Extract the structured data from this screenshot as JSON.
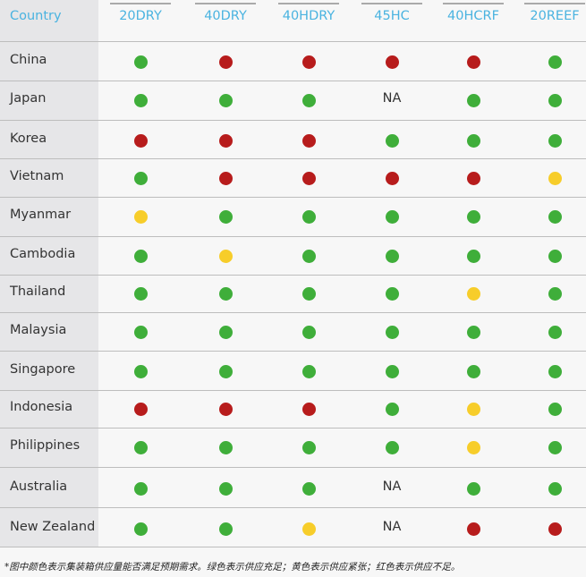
{
  "chart_data": {
    "type": "table",
    "header": "Country",
    "columns": [
      "20DRY",
      "40DRY",
      "40HDRY",
      "45HC",
      "40HCRF",
      "20REEF"
    ],
    "rows": [
      {
        "country": "China",
        "values": [
          "green",
          "red",
          "red",
          "red",
          "red",
          "green"
        ]
      },
      {
        "country": "Japan",
        "values": [
          "green",
          "green",
          "green",
          "NA",
          "green",
          "green"
        ]
      },
      {
        "country": "Korea",
        "values": [
          "red",
          "red",
          "red",
          "green",
          "green",
          "green"
        ]
      },
      {
        "country": "Vietnam",
        "values": [
          "green",
          "red",
          "red",
          "red",
          "red",
          "yellow"
        ]
      },
      {
        "country": "Myanmar",
        "values": [
          "yellow",
          "green",
          "green",
          "green",
          "green",
          "green"
        ]
      },
      {
        "country": "Cambodia",
        "values": [
          "green",
          "yellow",
          "green",
          "green",
          "green",
          "green"
        ]
      },
      {
        "country": "Thailand",
        "values": [
          "green",
          "green",
          "green",
          "green",
          "yellow",
          "green"
        ]
      },
      {
        "country": "Malaysia",
        "values": [
          "green",
          "green",
          "green",
          "green",
          "green",
          "green"
        ]
      },
      {
        "country": "Singapore",
        "values": [
          "green",
          "green",
          "green",
          "green",
          "green",
          "green"
        ]
      },
      {
        "country": "Indonesia",
        "values": [
          "red",
          "red",
          "red",
          "green",
          "yellow",
          "green"
        ]
      },
      {
        "country": "Philippines",
        "values": [
          "green",
          "green",
          "green",
          "green",
          "yellow",
          "green"
        ]
      },
      {
        "country": "Australia",
        "values": [
          "green",
          "green",
          "green",
          "NA",
          "green",
          "green"
        ]
      },
      {
        "country": "New Zealand",
        "values": [
          "green",
          "green",
          "yellow",
          "NA",
          "red",
          "red"
        ]
      }
    ],
    "colors": {
      "green": "#3fae3a",
      "red": "#b71c1c",
      "yellow": "#f7cd2a",
      "header": "#4ab3e0"
    },
    "footnote": "*图中颜色表示集装箱供应量能否满足预期需求。绿色表示供应充足；黄色表示供应紧张；红色表示供应不足。"
  }
}
